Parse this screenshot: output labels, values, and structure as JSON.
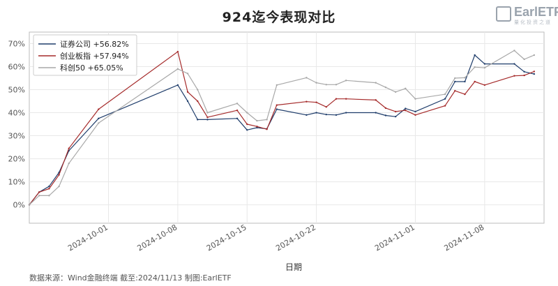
{
  "title": "924迄今表现对比",
  "logo": {
    "text": "EarlETF",
    "subtext": "量化投资之道"
  },
  "footer": "数据来源：Wind金融终端 截至:2024/11/13 制图:EarlETF",
  "colors": {
    "series": [
      "#1f3d6b",
      "#a52a2a",
      "#a8a8a8"
    ],
    "grid": "#e8e8e8",
    "axis": "#bbbbbb"
  },
  "chart_data": {
    "type": "line",
    "xlabel": "日期",
    "ylabel": "",
    "ylim": [
      -0.08,
      0.75
    ],
    "xlim": [
      "2024-09-23",
      "2024-11-14"
    ],
    "yticks": [
      0,
      0.1,
      0.2,
      0.3,
      0.4,
      0.5,
      0.6,
      0.7
    ],
    "ytick_labels": [
      "0%",
      "10%",
      "20%",
      "30%",
      "40%",
      "50%",
      "60%",
      "70%"
    ],
    "xticks": [
      "2024-10-01",
      "2024-10-08",
      "2024-10-15",
      "2024-10-22",
      "2024-11-01",
      "2024-11-08"
    ],
    "xtick_labels": [
      "2024-10-01",
      "2024-10-08",
      "2024-10-15",
      "2024-10-22",
      "2024-11-01",
      "2024-11-08"
    ],
    "grid": true,
    "legend": "top-left",
    "x": [
      "2024-09-23",
      "2024-09-24",
      "2024-09-25",
      "2024-09-26",
      "2024-09-27",
      "2024-09-30",
      "2024-10-08",
      "2024-10-09",
      "2024-10-10",
      "2024-10-11",
      "2024-10-14",
      "2024-10-15",
      "2024-10-16",
      "2024-10-17",
      "2024-10-18",
      "2024-10-21",
      "2024-10-22",
      "2024-10-23",
      "2024-10-24",
      "2024-10-25",
      "2024-10-28",
      "2024-10-29",
      "2024-10-30",
      "2024-10-31",
      "2024-11-01",
      "2024-11-04",
      "2024-11-05",
      "2024-11-06",
      "2024-11-07",
      "2024-11-08",
      "2024-11-11",
      "2024-11-12",
      "2024-11-13"
    ],
    "series": [
      {
        "name": "证券公司 +56.82%",
        "values": [
          0.0,
          0.055,
          0.08,
          0.14,
          0.235,
          0.375,
          0.52,
          0.45,
          0.37,
          0.37,
          0.375,
          0.325,
          0.335,
          0.33,
          0.415,
          0.39,
          0.4,
          0.392,
          0.39,
          0.4,
          0.4,
          0.388,
          0.383,
          0.418,
          0.405,
          0.46,
          0.535,
          0.535,
          0.65,
          0.612,
          0.612,
          0.578,
          0.568
        ]
      },
      {
        "name": "创业板指 +57.94%",
        "values": [
          0.0,
          0.055,
          0.07,
          0.13,
          0.245,
          0.415,
          0.665,
          0.49,
          0.45,
          0.38,
          0.41,
          0.35,
          0.34,
          0.328,
          0.433,
          0.448,
          0.445,
          0.425,
          0.46,
          0.46,
          0.455,
          0.42,
          0.405,
          0.41,
          0.39,
          0.43,
          0.495,
          0.48,
          0.535,
          0.52,
          0.56,
          0.562,
          0.579
        ]
      },
      {
        "name": "科创50 +65.05%",
        "values": [
          0.0,
          0.04,
          0.04,
          0.08,
          0.18,
          0.355,
          0.59,
          0.57,
          0.5,
          0.4,
          0.44,
          0.4,
          0.365,
          0.37,
          0.52,
          0.552,
          0.53,
          0.522,
          0.522,
          0.54,
          0.53,
          0.51,
          0.49,
          0.505,
          0.46,
          0.48,
          0.55,
          0.552,
          0.598,
          0.595,
          0.67,
          0.632,
          0.65
        ]
      }
    ]
  }
}
